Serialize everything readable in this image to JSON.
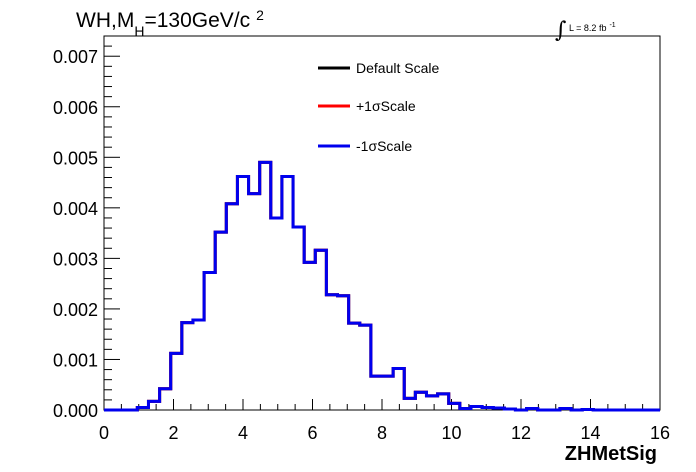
{
  "chart_data": {
    "type": "line",
    "title": "WH,M",
    "title_subscript": "H",
    "title_rest": "=130GeV/c",
    "title_superscript": "2",
    "lumi_text": "L = 8.2 fb",
    "lumi_sup": "-1",
    "xlabel": "ZHMetSig",
    "ylabel": "",
    "xlim": [
      0,
      16
    ],
    "ylim": [
      0,
      0.0074
    ],
    "x_ticks": [
      0,
      2,
      4,
      6,
      8,
      10,
      12,
      14,
      16
    ],
    "x_tick_labels": [
      "0",
      "2",
      "4",
      "6",
      "8",
      "10",
      "12",
      "14",
      "16"
    ],
    "y_ticks": [
      0,
      0.001,
      0.002,
      0.003,
      0.004,
      0.005,
      0.006,
      0.007
    ],
    "y_tick_labels": [
      "0.000",
      "0.001",
      "0.002",
      "0.003",
      "0.004",
      "0.005",
      "0.006",
      "0.007"
    ],
    "grid": false,
    "legend_position": "top-right",
    "bin_edges": [
      0,
      0.32,
      0.64,
      0.96,
      1.28,
      1.6,
      1.92,
      2.24,
      2.56,
      2.88,
      3.2,
      3.52,
      3.84,
      4.16,
      4.48,
      4.8,
      5.12,
      5.44,
      5.76,
      6.08,
      6.4,
      6.72,
      7.04,
      7.36,
      7.68,
      8.0,
      8.32,
      8.64,
      8.96,
      9.28,
      9.6,
      9.92,
      10.24,
      10.56,
      10.88,
      11.2,
      11.52,
      11.84,
      12.16,
      12.48,
      12.8,
      13.12,
      13.44,
      13.76,
      14.08,
      14.4,
      14.72,
      15.04,
      15.36,
      15.68,
      16.0
    ],
    "series": [
      {
        "name": "Default Scale",
        "color": "#000000",
        "values": [
          0.0,
          0.0,
          0.0,
          5e-05,
          0.00017,
          0.00042,
          0.00112,
          0.00173,
          0.00178,
          0.00272,
          0.00352,
          0.00408,
          0.00462,
          0.00428,
          0.0049,
          0.0038,
          0.00462,
          0.00362,
          0.00292,
          0.00316,
          0.00228,
          0.00226,
          0.00172,
          0.00168,
          0.00067,
          0.00067,
          0.00082,
          0.00023,
          0.00035,
          0.00028,
          0.00032,
          0.00013,
          3e-05,
          7e-05,
          5e-05,
          4e-05,
          2e-05,
          0.0,
          3e-05,
          0.0,
          0.0,
          3e-05,
          0.0,
          1e-05,
          0.0,
          0.0,
          0.0,
          0.0,
          0.0,
          0.0
        ]
      },
      {
        "name": "+1σScale",
        "color": "#ff0000",
        "values": [
          0.0,
          0.0,
          0.0,
          5e-05,
          0.00017,
          0.00042,
          0.00112,
          0.00173,
          0.00178,
          0.00272,
          0.00352,
          0.00408,
          0.00462,
          0.00428,
          0.0049,
          0.0038,
          0.00462,
          0.00362,
          0.00292,
          0.00316,
          0.00228,
          0.00226,
          0.00172,
          0.00168,
          0.00067,
          0.00067,
          0.00082,
          0.00023,
          0.00035,
          0.00028,
          0.00032,
          0.00013,
          3e-05,
          7e-05,
          5e-05,
          4e-05,
          2e-05,
          0.0,
          3e-05,
          0.0,
          0.0,
          3e-05,
          0.0,
          1e-05,
          0.0,
          0.0,
          0.0,
          0.0,
          0.0,
          0.0
        ]
      },
      {
        "name": "-1σScale",
        "color": "#0000ee",
        "values": [
          0.0,
          0.0,
          0.0,
          5e-05,
          0.00017,
          0.00042,
          0.00112,
          0.00173,
          0.00178,
          0.00272,
          0.00352,
          0.00408,
          0.00462,
          0.00428,
          0.0049,
          0.0038,
          0.00462,
          0.00362,
          0.00292,
          0.00316,
          0.00228,
          0.00226,
          0.00172,
          0.00168,
          0.00067,
          0.00067,
          0.00082,
          0.00023,
          0.00035,
          0.00028,
          0.00032,
          0.00013,
          3e-05,
          7e-05,
          5e-05,
          4e-05,
          2e-05,
          0.0,
          3e-05,
          0.0,
          0.0,
          3e-05,
          0.0,
          1e-05,
          0.0,
          0.0,
          0.0,
          0.0,
          0.0,
          0.0
        ]
      }
    ]
  }
}
